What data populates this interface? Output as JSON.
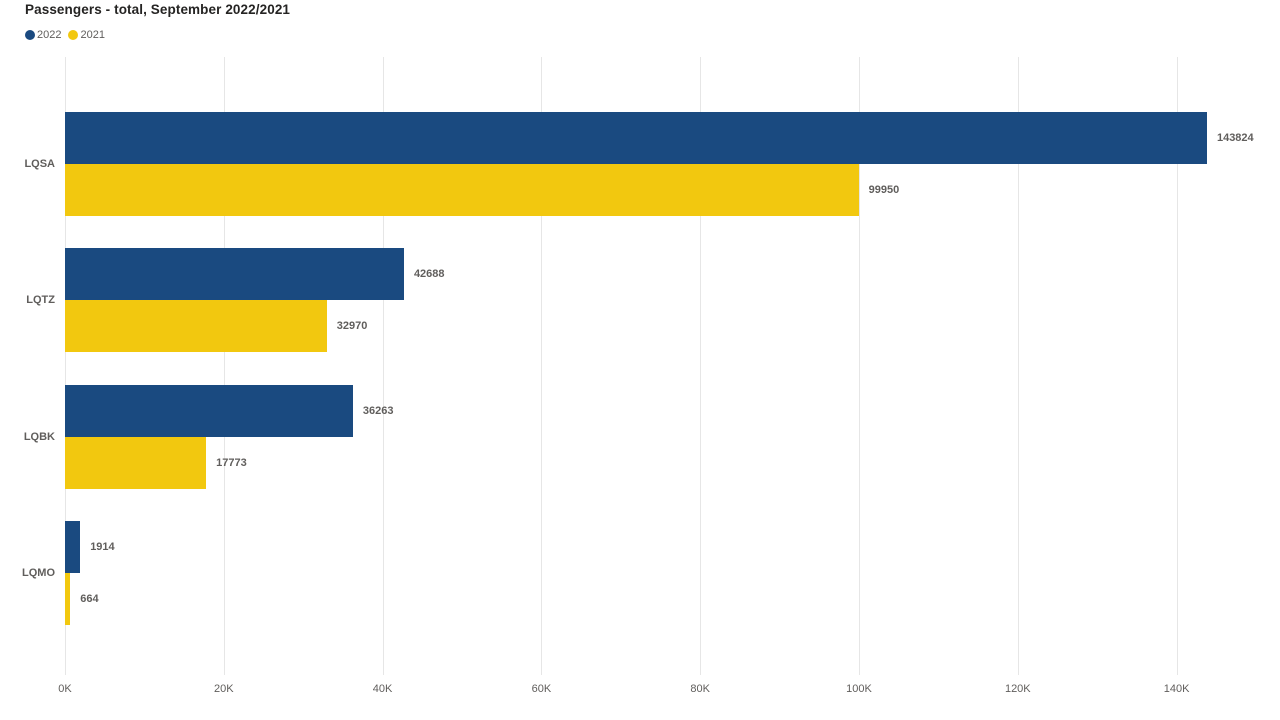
{
  "title": "Passengers - total, September 2022/2021",
  "legend": {
    "items": [
      {
        "label": "2022",
        "color": "#1A4A80"
      },
      {
        "label": "2021",
        "color": "#F2C80F"
      }
    ]
  },
  "colors": {
    "series_2022": "#1A4A80",
    "series_2021": "#F2C80F",
    "gridline": "#e6e6e6",
    "label_gray": "#605E5C",
    "title_black": "#252423"
  },
  "chart_data": {
    "type": "bar",
    "orientation": "horizontal",
    "title": "Passengers - total, September 2022/2021",
    "categories": [
      "LQSA",
      "LQTZ",
      "LQBK",
      "LQMO"
    ],
    "series": [
      {
        "name": "2022",
        "color": "#1A4A80",
        "values": [
          143824,
          42688,
          36263,
          1914
        ]
      },
      {
        "name": "2021",
        "color": "#F2C80F",
        "values": [
          99950,
          32970,
          17773,
          664
        ]
      }
    ],
    "data_labels": [
      "143824",
      "42688",
      "36263",
      "1914",
      "99950",
      "32970",
      "17773",
      "664"
    ],
    "x_axis": {
      "tick_labels": [
        "0K",
        "20K",
        "40K",
        "60K",
        "80K",
        "100K",
        "120K",
        "140K"
      ],
      "tick_values": [
        0,
        20000,
        40000,
        60000,
        80000,
        100000,
        120000,
        140000
      ],
      "min": 0,
      "max": 150000
    },
    "grid": true,
    "legend_position": "top-left",
    "data_labels_visible": true
  }
}
